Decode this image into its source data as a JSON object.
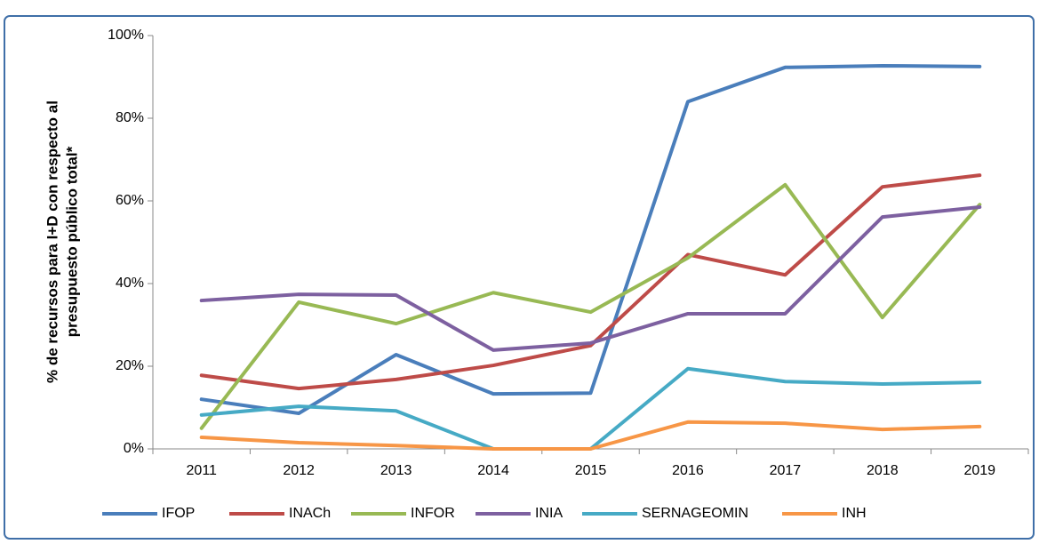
{
  "chart_data": {
    "type": "line",
    "y_label": [
      "% de recursos para I+D con respecto al",
      "presupuesto público total*"
    ],
    "categories": [
      "2011",
      "2012",
      "2013",
      "2014",
      "2015",
      "2016",
      "2017",
      "2018",
      "2019"
    ],
    "series": [
      {
        "name": "IFOP",
        "color": "#4a7ebb",
        "values": [
          12,
          8.6,
          22.8,
          13.3,
          13.5,
          84,
          92.3,
          92.7,
          92.5
        ]
      },
      {
        "name": "INACh",
        "color": "#be4b48",
        "values": [
          17.8,
          14.6,
          16.8,
          20.2,
          25,
          47,
          42.1,
          63.4,
          66.2
        ]
      },
      {
        "name": "INFOR",
        "color": "#98b954",
        "values": [
          5,
          35.5,
          30.3,
          37.8,
          33.1,
          46.2,
          63.9,
          31.8,
          59.1
        ]
      },
      {
        "name": "INIA",
        "color": "#7d60a0",
        "values": [
          35.9,
          37.4,
          37.2,
          23.9,
          25.6,
          32.7,
          32.7,
          56.1,
          58.5
        ]
      },
      {
        "name": "SERNAGEOMIN",
        "color": "#46aac5",
        "values": [
          8.2,
          10.3,
          9.2,
          0,
          0,
          19.4,
          16.3,
          15.7,
          16.1
        ]
      },
      {
        "name": "INH",
        "color": "#f79646",
        "values": [
          2.8,
          1.5,
          0.8,
          0,
          0,
          6.5,
          6.2,
          4.7,
          5.4
        ]
      }
    ],
    "ylim": [
      0,
      100
    ],
    "yticks": [
      {
        "value": 0,
        "label": "0%"
      },
      {
        "value": 20,
        "label": "20%"
      },
      {
        "value": 40,
        "label": "40%"
      },
      {
        "value": 60,
        "label": "60%"
      },
      {
        "value": 80,
        "label": "80%"
      },
      {
        "value": 100,
        "label": "100%"
      }
    ],
    "grid": false,
    "legend": "bottom"
  }
}
